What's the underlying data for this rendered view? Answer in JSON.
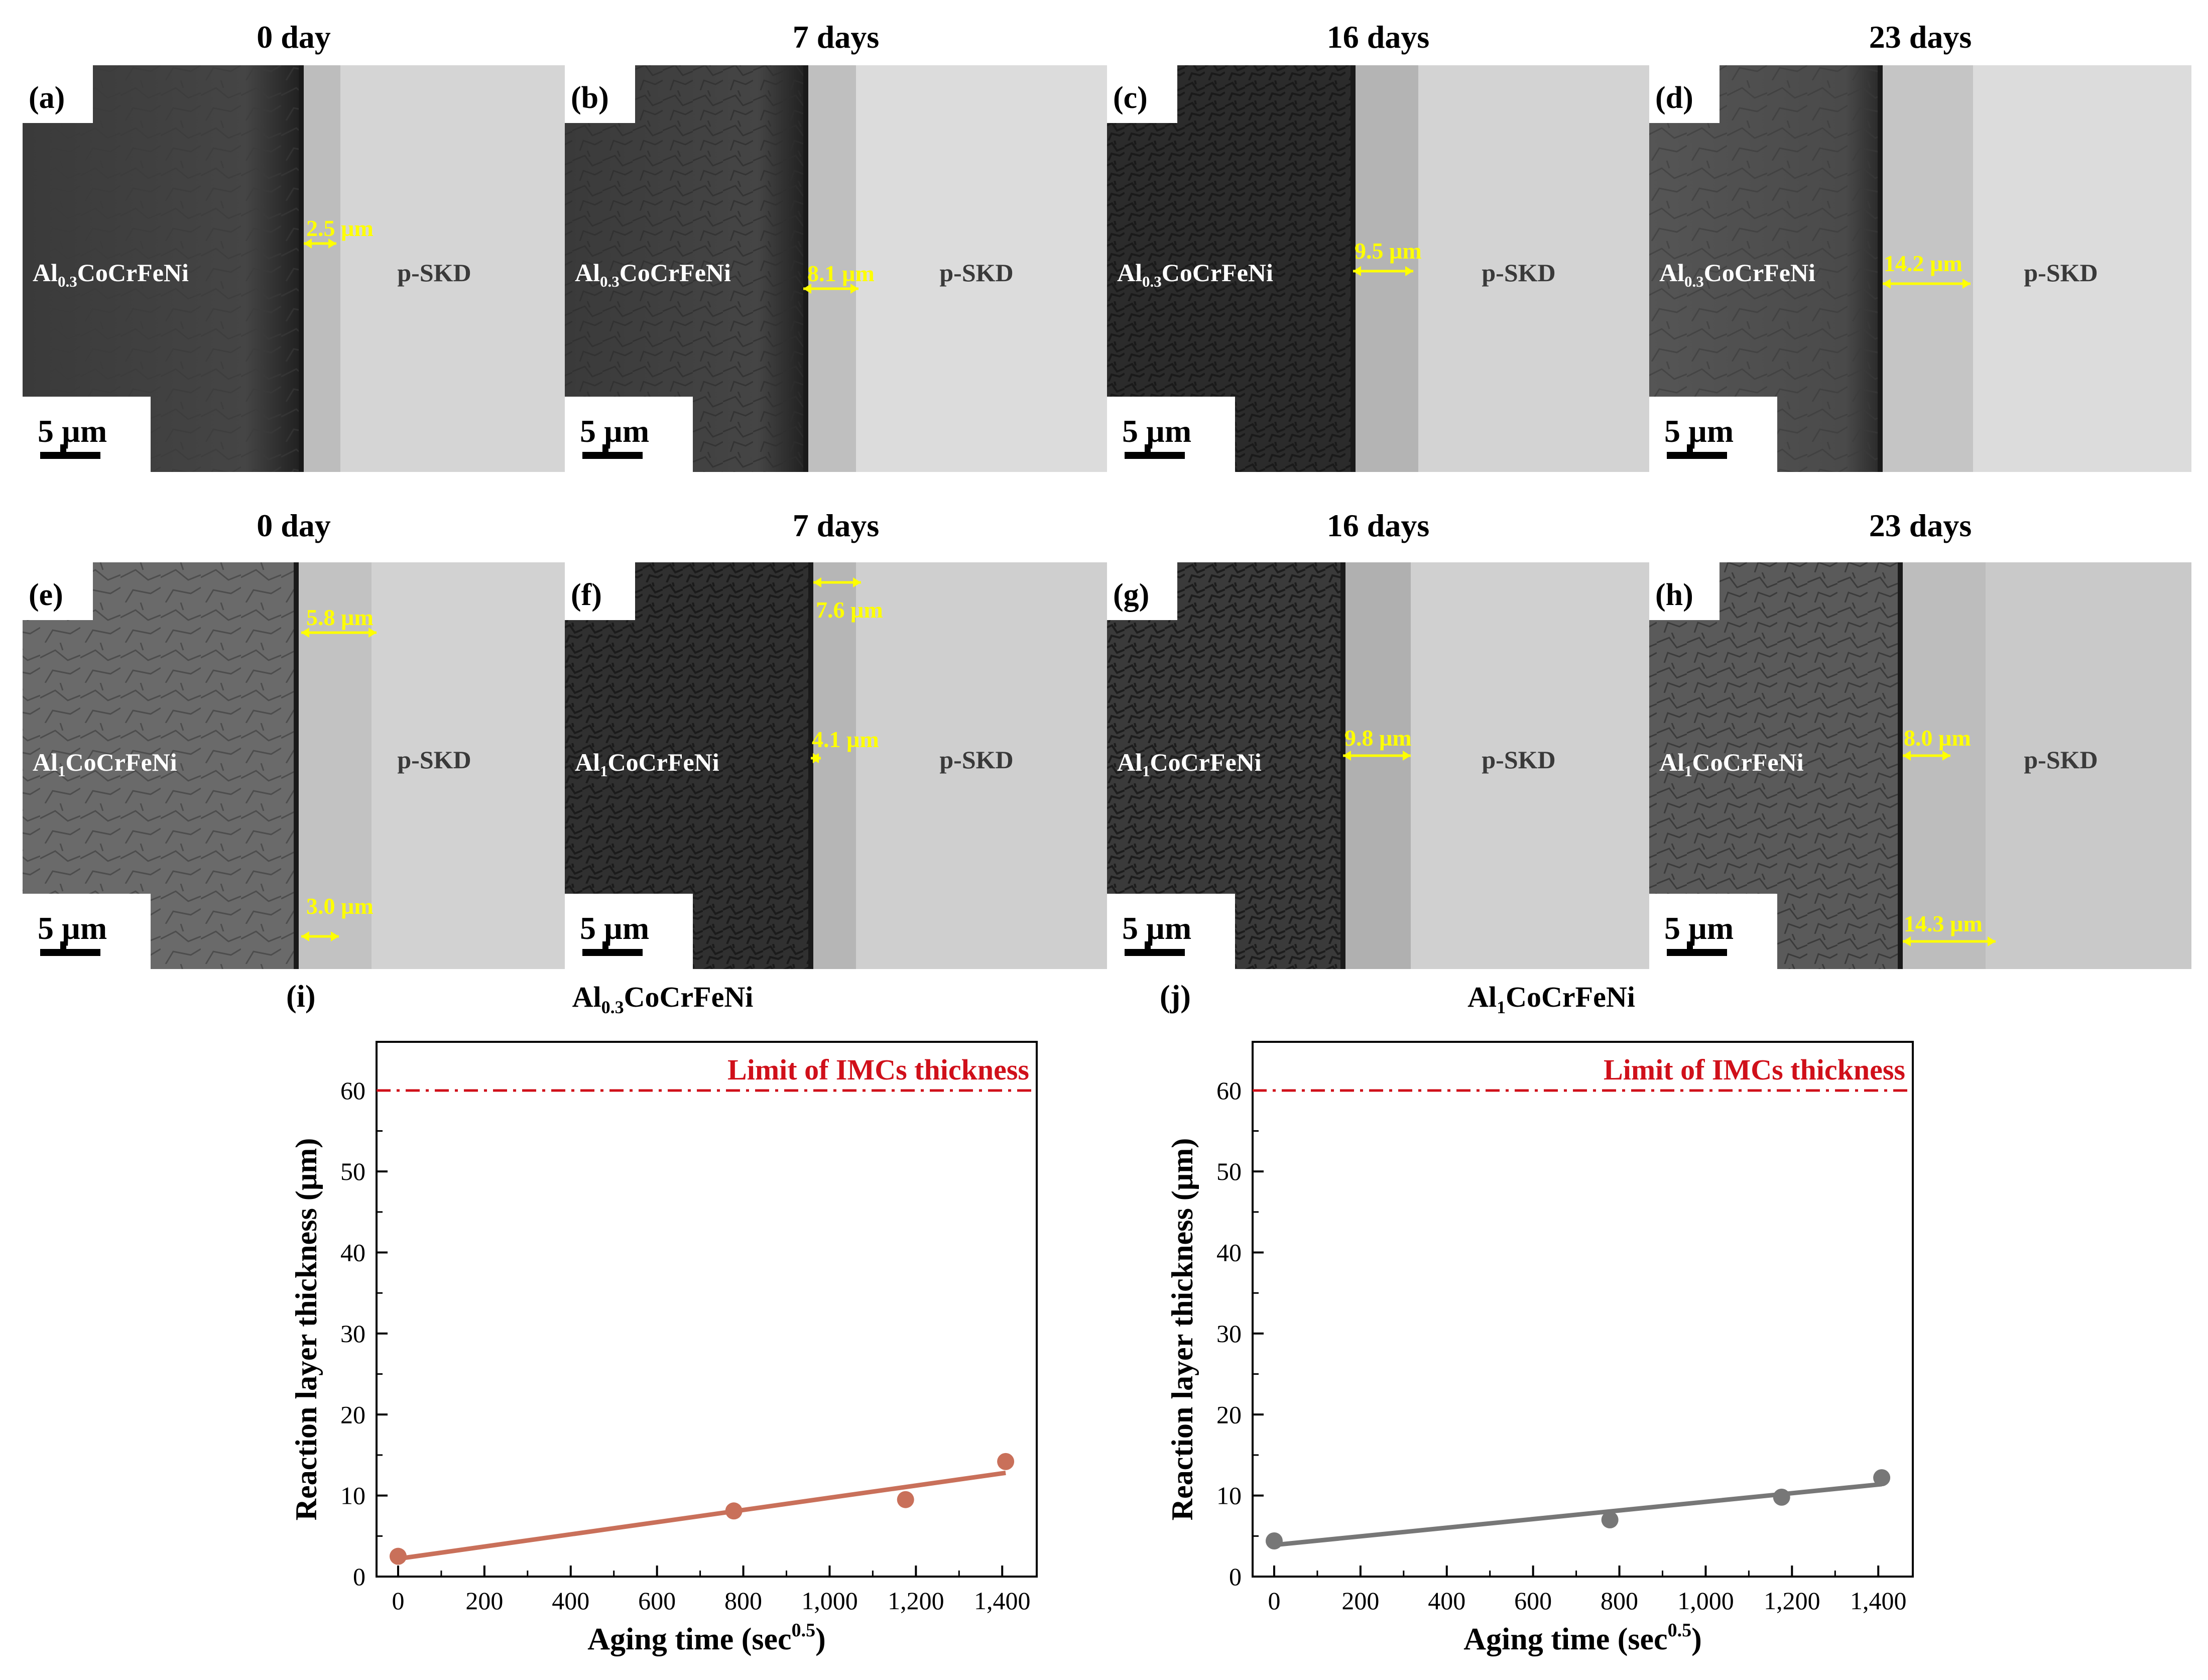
{
  "rows": [
    {
      "alloy_base": "Al",
      "alloy_sub": "0.3",
      "alloy_rest": "CoCrFeNi",
      "panels": [
        {
          "label": "(a)",
          "header": "0 day",
          "scale": "5 µm",
          "matrix": "p-SKD",
          "measurements": [
            {
              "text": "2.5 µm",
              "value_um": 2.5
            }
          ]
        },
        {
          "label": "(b)",
          "header": "7 days",
          "scale": "5 µm",
          "matrix": "p-SKD",
          "measurements": [
            {
              "text": "8.1 µm",
              "value_um": 8.1
            }
          ]
        },
        {
          "label": "(c)",
          "header": "16 days",
          "scale": "5 µm",
          "matrix": "p-SKD",
          "measurements": [
            {
              "text": "9.5 µm",
              "value_um": 9.5
            }
          ]
        },
        {
          "label": "(d)",
          "header": "23 days",
          "scale": "5 µm",
          "matrix": "p-SKD",
          "measurements": [
            {
              "text": "14.2 µm",
              "value_um": 14.2
            }
          ]
        }
      ]
    },
    {
      "alloy_base": "Al",
      "alloy_sub": "1",
      "alloy_rest": "CoCrFeNi",
      "panels": [
        {
          "label": "(e)",
          "header": "0 day",
          "scale": "5 µm",
          "matrix": "p-SKD",
          "measurements": [
            {
              "text": "5.8 µm",
              "value_um": 5.8
            },
            {
              "text": "3.0 µm",
              "value_um": 3.0
            }
          ]
        },
        {
          "label": "(f)",
          "header": "7 days",
          "scale": "5 µm",
          "matrix": "p-SKD",
          "measurements": [
            {
              "text": "7.6 µm",
              "value_um": 7.6
            },
            {
              "text": "4.1 µm",
              "value_um": 4.1
            }
          ]
        },
        {
          "label": "(g)",
          "header": "16 days",
          "scale": "5 µm",
          "matrix": "p-SKD",
          "measurements": [
            {
              "text": "9.8 µm",
              "value_um": 9.8
            }
          ]
        },
        {
          "label": "(h)",
          "header": "23 days",
          "scale": "5 µm",
          "matrix": "p-SKD",
          "measurements": [
            {
              "text": "8.0 µm",
              "value_um": 8.0
            },
            {
              "text": "14.3 µm",
              "value_um": 14.3
            }
          ]
        }
      ]
    }
  ],
  "colors": {
    "annotation_yellow": "#ffff00",
    "limit_red": "#d0101a",
    "series_i": "#c9705a",
    "series_j": "#777777"
  },
  "chart_data": [
    {
      "type": "scatter",
      "panel_label": "(i)",
      "title_base": "Al",
      "title_sub": "0.3",
      "title_rest": "CoCrFeNi",
      "ylabel": "Reaction layer thickness (µm)",
      "xlabel_base": "Aging time (sec",
      "xlabel_sup": "0.5",
      "xlabel_end": ")",
      "xlim": [
        -50,
        1480
      ],
      "ylim": [
        0,
        66
      ],
      "xticks": [
        0,
        200,
        400,
        600,
        800,
        1000,
        1200,
        1400
      ],
      "xtick_labels": [
        "0",
        "200",
        "400",
        "600",
        "800",
        "1,000",
        "1,200",
        "1,400"
      ],
      "yticks": [
        0,
        10,
        20,
        30,
        40,
        50,
        60
      ],
      "ytick_labels": [
        "0",
        "10",
        "20",
        "30",
        "40",
        "50",
        "60"
      ],
      "limit": {
        "value": 60,
        "label": "Limit of IMCs thickness"
      },
      "series": [
        {
          "name": "Al0.3CoCrFeNi",
          "x": [
            0,
            778,
            1176,
            1408
          ],
          "y": [
            2.5,
            8.1,
            9.5,
            14.2
          ]
        }
      ],
      "fit": {
        "x": [
          0,
          1408
        ],
        "y": [
          2.2,
          12.8
        ]
      }
    },
    {
      "type": "scatter",
      "panel_label": "(j)",
      "title_base": "Al",
      "title_sub": "1",
      "title_rest": "CoCrFeNi",
      "ylabel": "Reaction layer thickness (µm)",
      "xlabel_base": "Aging time (sec",
      "xlabel_sup": "0.5",
      "xlabel_end": ")",
      "xlim": [
        -50,
        1480
      ],
      "ylim": [
        0,
        66
      ],
      "xticks": [
        0,
        200,
        400,
        600,
        800,
        1000,
        1200,
        1400
      ],
      "xtick_labels": [
        "0",
        "200",
        "400",
        "600",
        "800",
        "1,000",
        "1,200",
        "1,400"
      ],
      "yticks": [
        0,
        10,
        20,
        30,
        40,
        50,
        60
      ],
      "ytick_labels": [
        "0",
        "10",
        "20",
        "30",
        "40",
        "50",
        "60"
      ],
      "limit": {
        "value": 60,
        "label": "Limit of IMCs thickness"
      },
      "series": [
        {
          "name": "Al1CoCrFeNi",
          "x": [
            0,
            778,
            1176,
            1408
          ],
          "y": [
            4.4,
            7.0,
            9.8,
            12.2
          ]
        }
      ],
      "fit": {
        "x": [
          0,
          1408
        ],
        "y": [
          3.9,
          11.4
        ]
      }
    }
  ]
}
